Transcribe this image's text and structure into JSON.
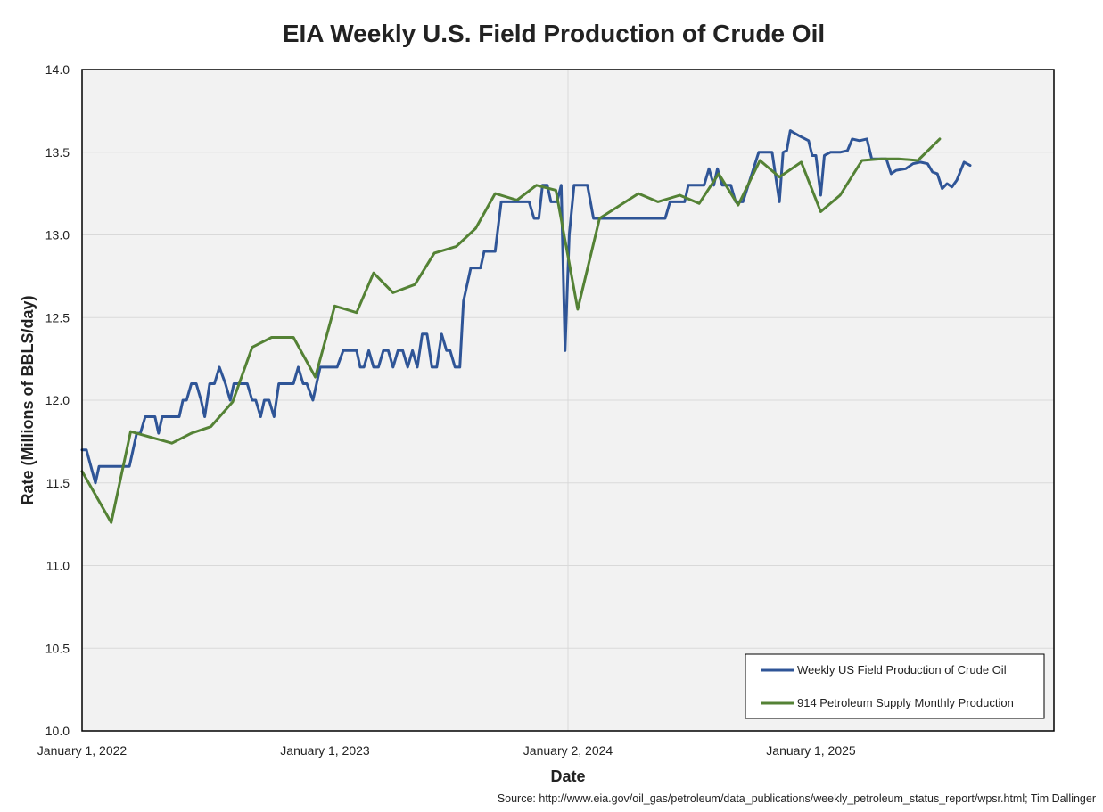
{
  "chart_data": {
    "type": "line",
    "title": "EIA Weekly U.S. Field Production of Crude Oil",
    "xlabel": "Date",
    "ylabel": "Rate (Millions of BBLS/day)",
    "source": "Source: http://www.eia.gov/oil_gas/petroleum/data_publications/weekly_petroleum_status_report/wpsr.html; Tim Dallinger",
    "ylim": [
      10.0,
      14.0
    ],
    "yticks": [
      "10.0",
      "10.5",
      "11.0",
      "11.5",
      "12.0",
      "12.5",
      "13.0",
      "13.5",
      "14.0"
    ],
    "xlim": [
      0,
      4
    ],
    "xticks": [
      {
        "value": 0,
        "label": "January 1, 2022"
      },
      {
        "value": 1,
        "label": "January 1, 2023"
      },
      {
        "value": 2,
        "label": "January 2, 2024"
      },
      {
        "value": 3,
        "label": "January 1, 2025"
      }
    ],
    "x_unit": "years since January 1, 2022",
    "grid": true,
    "legend_position": "bottom-right",
    "series": [
      {
        "name": "Weekly US Field Production of Crude Oil",
        "color": "#2F5597",
        "points": [
          [
            0.0,
            11.7
          ],
          [
            0.018,
            11.7
          ],
          [
            0.055,
            11.5
          ],
          [
            0.07,
            11.6
          ],
          [
            0.18,
            11.6
          ],
          [
            0.195,
            11.6
          ],
          [
            0.21,
            11.7
          ],
          [
            0.225,
            11.8
          ],
          [
            0.24,
            11.8
          ],
          [
            0.26,
            11.9
          ],
          [
            0.3,
            11.9
          ],
          [
            0.315,
            11.8
          ],
          [
            0.33,
            11.9
          ],
          [
            0.4,
            11.9
          ],
          [
            0.415,
            12.0
          ],
          [
            0.43,
            12.0
          ],
          [
            0.45,
            12.1
          ],
          [
            0.47,
            12.1
          ],
          [
            0.49,
            12.0
          ],
          [
            0.505,
            11.9
          ],
          [
            0.525,
            12.1
          ],
          [
            0.545,
            12.1
          ],
          [
            0.565,
            12.2
          ],
          [
            0.59,
            12.1
          ],
          [
            0.61,
            12.0
          ],
          [
            0.625,
            12.1
          ],
          [
            0.68,
            12.1
          ],
          [
            0.7,
            12.0
          ],
          [
            0.715,
            12.0
          ],
          [
            0.735,
            11.9
          ],
          [
            0.75,
            12.0
          ],
          [
            0.77,
            12.0
          ],
          [
            0.79,
            11.9
          ],
          [
            0.81,
            12.1
          ],
          [
            0.87,
            12.1
          ],
          [
            0.89,
            12.2
          ],
          [
            0.91,
            12.1
          ],
          [
            0.925,
            12.1
          ],
          [
            0.95,
            12.0
          ],
          [
            0.98,
            12.2
          ],
          [
            1.05,
            12.2
          ],
          [
            1.075,
            12.3
          ],
          [
            1.13,
            12.3
          ],
          [
            1.145,
            12.2
          ],
          [
            1.16,
            12.2
          ],
          [
            1.18,
            12.3
          ],
          [
            1.2,
            12.2
          ],
          [
            1.22,
            12.2
          ],
          [
            1.24,
            12.3
          ],
          [
            1.26,
            12.3
          ],
          [
            1.28,
            12.2
          ],
          [
            1.3,
            12.3
          ],
          [
            1.32,
            12.3
          ],
          [
            1.34,
            12.2
          ],
          [
            1.36,
            12.3
          ],
          [
            1.38,
            12.2
          ],
          [
            1.4,
            12.4
          ],
          [
            1.42,
            12.4
          ],
          [
            1.44,
            12.2
          ],
          [
            1.46,
            12.2
          ],
          [
            1.48,
            12.4
          ],
          [
            1.5,
            12.3
          ],
          [
            1.515,
            12.3
          ],
          [
            1.535,
            12.2
          ],
          [
            1.555,
            12.2
          ],
          [
            1.57,
            12.6
          ],
          [
            1.6,
            12.8
          ],
          [
            1.64,
            12.8
          ],
          [
            1.655,
            12.9
          ],
          [
            1.7,
            12.9
          ],
          [
            1.725,
            13.2
          ],
          [
            1.84,
            13.2
          ],
          [
            1.86,
            13.1
          ],
          [
            1.88,
            13.1
          ],
          [
            1.895,
            13.3
          ],
          [
            1.915,
            13.3
          ],
          [
            1.93,
            13.2
          ],
          [
            1.955,
            13.2
          ],
          [
            1.972,
            13.3
          ],
          [
            1.988,
            12.3
          ],
          [
            2.005,
            13.0
          ],
          [
            2.025,
            13.3
          ],
          [
            2.08,
            13.3
          ],
          [
            2.105,
            13.1
          ],
          [
            2.18,
            13.1
          ],
          [
            2.4,
            13.1
          ],
          [
            2.42,
            13.2
          ],
          [
            2.48,
            13.2
          ],
          [
            2.495,
            13.3
          ],
          [
            2.56,
            13.3
          ],
          [
            2.58,
            13.4
          ],
          [
            2.6,
            13.3
          ],
          [
            2.615,
            13.4
          ],
          [
            2.635,
            13.3
          ],
          [
            2.67,
            13.3
          ],
          [
            2.69,
            13.2
          ],
          [
            2.72,
            13.2
          ],
          [
            2.785,
            13.5
          ],
          [
            2.84,
            13.5
          ],
          [
            2.87,
            13.2
          ],
          [
            2.885,
            13.5
          ],
          [
            2.9,
            13.51
          ],
          [
            2.915,
            13.63
          ],
          [
            2.95,
            13.6
          ],
          [
            2.99,
            13.57
          ],
          [
            3.005,
            13.48
          ],
          [
            3.02,
            13.48
          ],
          [
            3.04,
            13.24
          ],
          [
            3.055,
            13.48
          ],
          [
            3.08,
            13.5
          ],
          [
            3.12,
            13.5
          ],
          [
            3.15,
            13.51
          ],
          [
            3.17,
            13.58
          ],
          [
            3.2,
            13.57
          ],
          [
            3.23,
            13.58
          ],
          [
            3.25,
            13.46
          ],
          [
            3.29,
            13.46
          ],
          [
            3.31,
            13.46
          ],
          [
            3.33,
            13.37
          ],
          [
            3.35,
            13.39
          ],
          [
            3.39,
            13.4
          ],
          [
            3.42,
            13.43
          ],
          [
            3.45,
            13.44
          ],
          [
            3.48,
            13.43
          ],
          [
            3.5,
            13.38
          ],
          [
            3.52,
            13.37
          ],
          [
            3.54,
            13.28
          ],
          [
            3.56,
            13.31
          ],
          [
            3.58,
            13.29
          ],
          [
            3.6,
            13.33
          ],
          [
            3.63,
            13.44
          ],
          [
            3.655,
            13.42
          ]
        ]
      },
      {
        "name": "914 Petroleum Supply Monthly Production",
        "color": "#548235",
        "points": [
          [
            0.0,
            11.57
          ],
          [
            0.12,
            11.26
          ],
          [
            0.2,
            11.81
          ],
          [
            0.37,
            11.74
          ],
          [
            0.45,
            11.8
          ],
          [
            0.53,
            11.84
          ],
          [
            0.62,
            11.99
          ],
          [
            0.7,
            12.32
          ],
          [
            0.78,
            12.38
          ],
          [
            0.87,
            12.38
          ],
          [
            0.96,
            12.14
          ],
          [
            1.04,
            12.57
          ],
          [
            1.13,
            12.53
          ],
          [
            1.2,
            12.77
          ],
          [
            1.28,
            12.65
          ],
          [
            1.37,
            12.7
          ],
          [
            1.45,
            12.89
          ],
          [
            1.54,
            12.93
          ],
          [
            1.62,
            13.04
          ],
          [
            1.7,
            13.25
          ],
          [
            1.79,
            13.21
          ],
          [
            1.87,
            13.3
          ],
          [
            1.95,
            13.27
          ],
          [
            2.04,
            12.55
          ],
          [
            2.13,
            13.1
          ],
          [
            2.29,
            13.25
          ],
          [
            2.37,
            13.2
          ],
          [
            2.46,
            13.24
          ],
          [
            2.54,
            13.19
          ],
          [
            2.62,
            13.37
          ],
          [
            2.7,
            13.18
          ],
          [
            2.79,
            13.45
          ],
          [
            2.87,
            13.35
          ],
          [
            2.96,
            13.44
          ],
          [
            3.04,
            13.14
          ],
          [
            3.12,
            13.24
          ],
          [
            3.21,
            13.45
          ],
          [
            3.29,
            13.46
          ],
          [
            3.36,
            13.46
          ],
          [
            3.44,
            13.45
          ],
          [
            3.53,
            13.58
          ]
        ]
      }
    ]
  }
}
